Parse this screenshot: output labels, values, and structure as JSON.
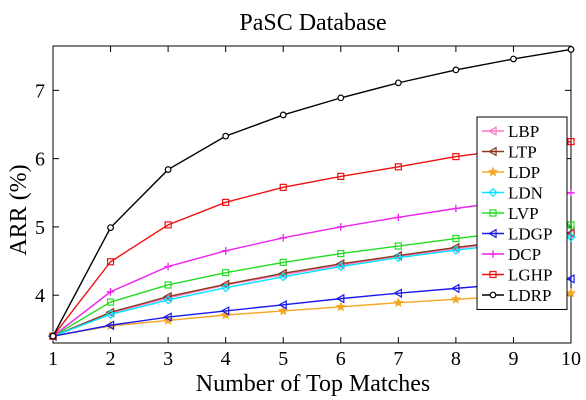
{
  "chart_data": {
    "type": "line",
    "title": "PaSC Database",
    "xlabel": "Number of Top Matches",
    "ylabel": "ARR (%)",
    "x": [
      1,
      2,
      3,
      4,
      5,
      6,
      7,
      8,
      9,
      10
    ],
    "xlim": [
      1,
      10
    ],
    "ylim": [
      3.3,
      7.65
    ],
    "xticks": [
      "1",
      "2",
      "3",
      "4",
      "5",
      "6",
      "7",
      "8",
      "9",
      "10"
    ],
    "yticks": [
      {
        "value": 4,
        "label": "4"
      },
      {
        "value": 5,
        "label": "5"
      },
      {
        "value": 6,
        "label": "6"
      },
      {
        "value": 7,
        "label": "7"
      }
    ],
    "grid": false,
    "legend_position": "right",
    "series": [
      {
        "name": "LBP",
        "color": "#ff77cc",
        "marker": "triangle-left",
        "values": [
          3.4,
          3.74,
          3.96,
          4.15,
          4.3,
          4.44,
          4.57,
          4.68,
          4.8,
          4.9
        ]
      },
      {
        "name": "LTP",
        "color": "#8b3a1a",
        "marker": "triangle-left",
        "values": [
          3.4,
          3.75,
          3.98,
          4.16,
          4.32,
          4.46,
          4.58,
          4.7,
          4.8,
          4.91
        ]
      },
      {
        "name": "LDP",
        "color": "#f5a623",
        "marker": "star",
        "values": [
          3.4,
          3.55,
          3.63,
          3.71,
          3.77,
          3.83,
          3.89,
          3.94,
          3.99,
          4.03
        ]
      },
      {
        "name": "LDN",
        "color": "#00e5ff",
        "marker": "diamond",
        "values": [
          3.4,
          3.72,
          3.93,
          4.11,
          4.27,
          4.42,
          4.55,
          4.66,
          4.76,
          4.85
        ]
      },
      {
        "name": "LVP",
        "color": "#22dd22",
        "marker": "square",
        "values": [
          3.4,
          3.9,
          4.15,
          4.33,
          4.48,
          4.61,
          4.72,
          4.83,
          4.93,
          5.03
        ]
      },
      {
        "name": "LDGP",
        "color": "#1a1aee",
        "marker": "triangle-left",
        "values": [
          3.4,
          3.56,
          3.68,
          3.77,
          3.86,
          3.95,
          4.03,
          4.1,
          4.17,
          4.24
        ]
      },
      {
        "name": "DCP",
        "color": "#ee22ee",
        "marker": "plus",
        "values": [
          3.4,
          4.05,
          4.42,
          4.65,
          4.84,
          5.0,
          5.14,
          5.27,
          5.39,
          5.5
        ]
      },
      {
        "name": "LGHP",
        "color": "#ee1111",
        "marker": "square",
        "values": [
          3.4,
          4.49,
          5.03,
          5.36,
          5.58,
          5.74,
          5.88,
          6.03,
          6.14,
          6.25
        ]
      },
      {
        "name": "LDRP",
        "color": "#000000",
        "marker": "circle",
        "values": [
          3.4,
          4.99,
          5.84,
          6.33,
          6.64,
          6.89,
          7.11,
          7.3,
          7.46,
          7.6
        ]
      }
    ]
  }
}
